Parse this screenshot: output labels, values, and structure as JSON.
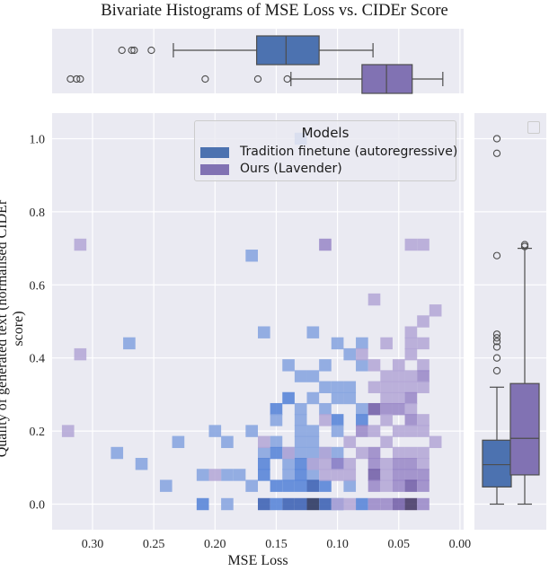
{
  "title": "Bivariate Histograms of MSE Loss vs. CIDEr Score",
  "colors": {
    "background": "#eaeaf2",
    "grid": "#ffffff",
    "series_1": "#4c72b0",
    "series_2": "#8172b3",
    "box_edge": "#4d4d4d"
  },
  "legend": {
    "title": "Models",
    "entries": [
      "Tradition finetune (autoregressive)",
      "Ours (Lavender)"
    ]
  },
  "chart_data": [
    {
      "type": "heatmap",
      "subtype": "bivariate histogram",
      "xlabel": "MSE Loss",
      "ylabel": "Quality of generated text (normalised CIDEr score)",
      "x_inverted": true,
      "xlim": [
        0.333,
        -0.003
      ],
      "ylim": [
        -0.07,
        1.07
      ],
      "x_bin_width": 0.01,
      "y_bin_width": 0.033,
      "x_ticks": [
        0.3,
        0.25,
        0.2,
        0.15,
        0.1,
        0.05,
        0.0
      ],
      "x_tick_labels": [
        "0.30",
        "0.25",
        "0.20",
        "0.15",
        "0.10",
        "0.05",
        "0.00"
      ],
      "y_ticks": [
        0.0,
        0.2,
        0.4,
        0.6,
        0.8,
        1.0
      ],
      "y_tick_labels": [
        "0.0",
        "0.2",
        "0.4",
        "0.6",
        "0.8",
        "1.0"
      ],
      "grid": true,
      "legend_position": "upper right",
      "series": [
        {
          "name": "Tradition finetune (autoregressive)",
          "cells": [
            [
              0.13,
              1.0,
              1
            ],
            [
              0.17,
              0.68,
              1
            ],
            [
              0.27,
              0.44,
              1
            ],
            [
              0.16,
              0.47,
              1
            ],
            [
              0.12,
              0.47,
              1
            ],
            [
              0.1,
              0.44,
              1
            ],
            [
              0.08,
              0.44,
              1
            ],
            [
              0.09,
              0.41,
              1
            ],
            [
              0.11,
              0.38,
              1
            ],
            [
              0.14,
              0.38,
              1
            ],
            [
              0.08,
              0.38,
              1
            ],
            [
              0.13,
              0.35,
              1
            ],
            [
              0.12,
              0.35,
              1
            ],
            [
              0.1,
              0.32,
              1
            ],
            [
              0.09,
              0.32,
              1
            ],
            [
              0.11,
              0.32,
              1
            ],
            [
              0.14,
              0.29,
              2
            ],
            [
              0.12,
              0.29,
              1
            ],
            [
              0.1,
              0.29,
              1
            ],
            [
              0.09,
              0.29,
              1
            ],
            [
              0.13,
              0.26,
              1
            ],
            [
              0.11,
              0.26,
              1
            ],
            [
              0.08,
              0.26,
              1
            ],
            [
              0.15,
              0.26,
              2
            ],
            [
              0.13,
              0.23,
              1
            ],
            [
              0.1,
              0.23,
              2
            ],
            [
              0.08,
              0.23,
              2
            ],
            [
              0.15,
              0.23,
              1
            ],
            [
              0.12,
              0.2,
              1
            ],
            [
              0.13,
              0.2,
              1
            ],
            [
              0.1,
              0.2,
              1
            ],
            [
              0.2,
              0.2,
              1
            ],
            [
              0.17,
              0.2,
              1
            ],
            [
              0.15,
              0.17,
              1
            ],
            [
              0.13,
              0.17,
              1
            ],
            [
              0.12,
              0.17,
              1
            ],
            [
              0.23,
              0.17,
              1
            ],
            [
              0.19,
              0.17,
              1
            ],
            [
              0.16,
              0.14,
              1
            ],
            [
              0.15,
              0.14,
              2
            ],
            [
              0.14,
              0.14,
              1
            ],
            [
              0.13,
              0.14,
              1
            ],
            [
              0.12,
              0.14,
              1
            ],
            [
              0.11,
              0.14,
              1
            ],
            [
              0.1,
              0.14,
              1
            ],
            [
              0.28,
              0.14,
              1
            ],
            [
              0.26,
              0.11,
              1
            ],
            [
              0.16,
              0.11,
              2
            ],
            [
              0.14,
              0.11,
              1
            ],
            [
              0.13,
              0.11,
              2
            ],
            [
              0.12,
              0.11,
              1
            ],
            [
              0.1,
              0.11,
              2
            ],
            [
              0.21,
              0.08,
              1
            ],
            [
              0.19,
              0.08,
              1
            ],
            [
              0.18,
              0.08,
              1
            ],
            [
              0.16,
              0.08,
              2
            ],
            [
              0.14,
              0.08,
              1
            ],
            [
              0.13,
              0.08,
              2
            ],
            [
              0.12,
              0.08,
              1
            ],
            [
              0.24,
              0.05,
              1
            ],
            [
              0.17,
              0.05,
              1
            ],
            [
              0.15,
              0.05,
              2
            ],
            [
              0.14,
              0.05,
              2
            ],
            [
              0.13,
              0.05,
              2
            ],
            [
              0.12,
              0.05,
              3
            ],
            [
              0.11,
              0.05,
              2
            ],
            [
              0.09,
              0.05,
              1
            ],
            [
              0.21,
              0.0,
              2
            ],
            [
              0.19,
              0.0,
              1
            ],
            [
              0.16,
              0.0,
              3
            ],
            [
              0.15,
              0.0,
              2
            ],
            [
              0.14,
              0.0,
              3
            ],
            [
              0.13,
              0.0,
              3
            ],
            [
              0.12,
              0.0,
              4
            ],
            [
              0.11,
              0.0,
              3
            ],
            [
              0.1,
              0.0,
              2
            ],
            [
              0.08,
              0.0,
              2
            ]
          ]
        },
        {
          "name": "Ours (Lavender)",
          "cells": [
            [
              0.31,
              0.71,
              1
            ],
            [
              0.11,
              0.71,
              2
            ],
            [
              0.04,
              0.71,
              1
            ],
            [
              0.03,
              0.71,
              1
            ],
            [
              0.07,
              0.56,
              1
            ],
            [
              0.02,
              0.53,
              1
            ],
            [
              0.03,
              0.5,
              1
            ],
            [
              0.04,
              0.47,
              1
            ],
            [
              0.06,
              0.44,
              1
            ],
            [
              0.04,
              0.44,
              1
            ],
            [
              0.03,
              0.44,
              1
            ],
            [
              0.31,
              0.41,
              1
            ],
            [
              0.08,
              0.41,
              1
            ],
            [
              0.04,
              0.41,
              1
            ],
            [
              0.05,
              0.38,
              1
            ],
            [
              0.03,
              0.38,
              1
            ],
            [
              0.07,
              0.38,
              1
            ],
            [
              0.06,
              0.35,
              1
            ],
            [
              0.05,
              0.35,
              1
            ],
            [
              0.04,
              0.35,
              1
            ],
            [
              0.03,
              0.35,
              2
            ],
            [
              0.07,
              0.32,
              1
            ],
            [
              0.06,
              0.32,
              1
            ],
            [
              0.05,
              0.32,
              1
            ],
            [
              0.04,
              0.32,
              1
            ],
            [
              0.03,
              0.32,
              1
            ],
            [
              0.06,
              0.29,
              1
            ],
            [
              0.05,
              0.29,
              1
            ],
            [
              0.04,
              0.29,
              2
            ],
            [
              0.07,
              0.26,
              3
            ],
            [
              0.06,
              0.26,
              2
            ],
            [
              0.05,
              0.26,
              2
            ],
            [
              0.04,
              0.26,
              1
            ],
            [
              0.06,
              0.23,
              1
            ],
            [
              0.04,
              0.23,
              2
            ],
            [
              0.03,
              0.23,
              1
            ],
            [
              0.11,
              0.23,
              1
            ],
            [
              0.08,
              0.2,
              2
            ],
            [
              0.07,
              0.2,
              1
            ],
            [
              0.05,
              0.2,
              1
            ],
            [
              0.04,
              0.2,
              1
            ],
            [
              0.32,
              0.2,
              1
            ],
            [
              0.03,
              0.2,
              1
            ],
            [
              0.09,
              0.17,
              1
            ],
            [
              0.06,
              0.17,
              1
            ],
            [
              0.02,
              0.17,
              1
            ],
            [
              0.16,
              0.17,
              1
            ],
            [
              0.14,
              0.14,
              1
            ],
            [
              0.11,
              0.14,
              1
            ],
            [
              0.08,
              0.14,
              1
            ],
            [
              0.07,
              0.14,
              2
            ],
            [
              0.05,
              0.14,
              1
            ],
            [
              0.04,
              0.14,
              1
            ],
            [
              0.03,
              0.14,
              1
            ],
            [
              0.12,
              0.11,
              1
            ],
            [
              0.11,
              0.11,
              1
            ],
            [
              0.1,
              0.11,
              2
            ],
            [
              0.09,
              0.11,
              1
            ],
            [
              0.07,
              0.11,
              2
            ],
            [
              0.06,
              0.11,
              1
            ],
            [
              0.05,
              0.11,
              2
            ],
            [
              0.04,
              0.11,
              2
            ],
            [
              0.03,
              0.11,
              1
            ],
            [
              0.2,
              0.08,
              1
            ],
            [
              0.11,
              0.08,
              1
            ],
            [
              0.1,
              0.08,
              1
            ],
            [
              0.09,
              0.08,
              1
            ],
            [
              0.07,
              0.08,
              3
            ],
            [
              0.06,
              0.08,
              1
            ],
            [
              0.05,
              0.08,
              2
            ],
            [
              0.04,
              0.08,
              2
            ],
            [
              0.03,
              0.08,
              2
            ],
            [
              0.07,
              0.05,
              2
            ],
            [
              0.06,
              0.05,
              1
            ],
            [
              0.05,
              0.05,
              2
            ],
            [
              0.04,
              0.05,
              3
            ],
            [
              0.03,
              0.05,
              2
            ],
            [
              0.1,
              0.0,
              1
            ],
            [
              0.09,
              0.0,
              1
            ],
            [
              0.07,
              0.0,
              2
            ],
            [
              0.06,
              0.0,
              2
            ],
            [
              0.05,
              0.0,
              3
            ],
            [
              0.04,
              0.0,
              4
            ],
            [
              0.03,
              0.0,
              2
            ]
          ]
        }
      ]
    },
    {
      "type": "box",
      "orientation": "horizontal",
      "variable": "MSE Loss",
      "series": [
        {
          "name": "Tradition finetune (autoregressive)",
          "whisker_low": 0.071,
          "q1": 0.115,
          "median": 0.142,
          "q3": 0.166,
          "whisker_high": 0.234,
          "outliers": [
            0.252,
            0.266,
            0.268,
            0.276
          ]
        },
        {
          "name": "Ours (Lavender)",
          "whisker_low": 0.014,
          "q1": 0.039,
          "median": 0.06,
          "q3": 0.08,
          "whisker_high": 0.138,
          "outliers": [
            0.141,
            0.165,
            0.208,
            0.31,
            0.313,
            0.318
          ]
        }
      ]
    },
    {
      "type": "box",
      "orientation": "vertical",
      "variable": "Quality of generated text (normalised CIDEr score)",
      "series": [
        {
          "name": "Tradition finetune (autoregressive)",
          "whisker_low": 0.0,
          "q1": 0.047,
          "median": 0.108,
          "q3": 0.175,
          "whisker_high": 0.32,
          "outliers": [
            0.365,
            0.4,
            0.43,
            0.445,
            0.455,
            0.465,
            0.68,
            0.96,
            1.0
          ]
        },
        {
          "name": "Ours (Lavender)",
          "whisker_low": 0.0,
          "q1": 0.08,
          "median": 0.18,
          "q3": 0.33,
          "whisker_high": 0.7,
          "outliers": [
            0.705,
            0.71
          ]
        }
      ]
    }
  ]
}
